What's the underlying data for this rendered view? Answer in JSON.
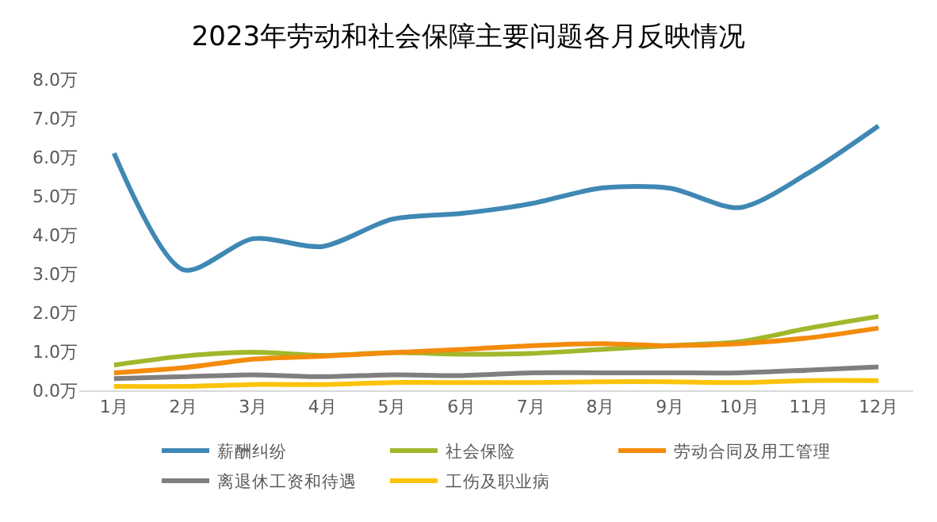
{
  "chart_data": {
    "type": "line",
    "title": "2023年劳动和社会保障主要问题各月反映情况",
    "categories": [
      "1月",
      "2月",
      "3月",
      "4月",
      "5月",
      "6月",
      "7月",
      "8月",
      "9月",
      "10月",
      "11月",
      "12月"
    ],
    "series": [
      {
        "name": "薪酬纠纷",
        "color": "#3f88b4",
        "values": [
          6.1,
          3.1,
          3.9,
          3.7,
          4.4,
          4.55,
          4.8,
          5.2,
          5.2,
          4.7,
          5.6,
          6.8
        ]
      },
      {
        "name": "社会保险",
        "color": "#a0b82c",
        "values": [
          0.65,
          0.88,
          0.98,
          0.9,
          0.97,
          0.93,
          0.95,
          1.05,
          1.15,
          1.25,
          1.6,
          1.9
        ]
      },
      {
        "name": "劳动合同及用工管理",
        "color": "#f38b0b",
        "values": [
          0.45,
          0.58,
          0.8,
          0.88,
          0.97,
          1.05,
          1.15,
          1.2,
          1.15,
          1.2,
          1.35,
          1.6
        ]
      },
      {
        "name": "离退休工资和待遇",
        "color": "#7f7f7f",
        "values": [
          0.3,
          0.35,
          0.4,
          0.35,
          0.4,
          0.38,
          0.45,
          0.45,
          0.45,
          0.45,
          0.52,
          0.6
        ]
      },
      {
        "name": "工伤及职业病",
        "color": "#fbc30a",
        "values": [
          0.1,
          0.1,
          0.15,
          0.15,
          0.2,
          0.2,
          0.2,
          0.22,
          0.22,
          0.2,
          0.25,
          0.25
        ]
      }
    ],
    "ylim": [
      0,
      8
    ],
    "yticks": [
      {
        "value": 0,
        "label": "0.0万"
      },
      {
        "value": 1,
        "label": "1.0万"
      },
      {
        "value": 2,
        "label": "2.0万"
      },
      {
        "value": 3,
        "label": "3.0万"
      },
      {
        "value": 4,
        "label": "4.0万"
      },
      {
        "value": 5,
        "label": "5.0万"
      },
      {
        "value": 6,
        "label": "6.0万"
      },
      {
        "value": 7,
        "label": "7.0万"
      },
      {
        "value": 8,
        "label": "8.0万"
      }
    ],
    "legend": "bottom",
    "marker": "none",
    "line_style": "solid"
  }
}
